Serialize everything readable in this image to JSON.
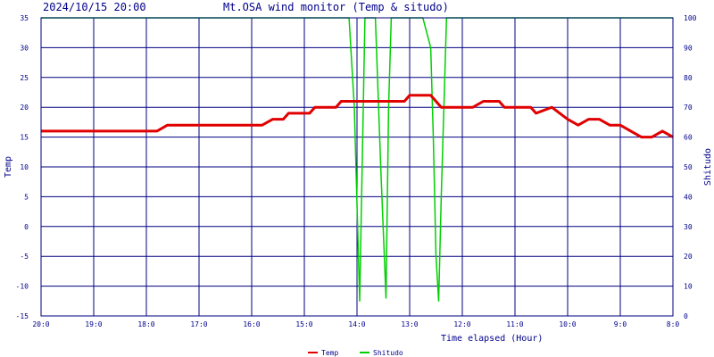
{
  "header": {
    "datetime": "2024/10/15 20:00",
    "title": "Mt.OSA wind monitor (Temp & situdo)"
  },
  "chart_data": {
    "type": "line",
    "xlabel": "Time elapsed (Hour)",
    "ylabel_left": "Temp",
    "ylabel_right": "Shitudo",
    "x_tick_labels": [
      "20:0",
      "19:0",
      "18:0",
      "17:0",
      "16:0",
      "15:0",
      "14:0",
      "13:0",
      "12:0",
      "11:0",
      "10:0",
      "9:0",
      "8:0"
    ],
    "xlim": [
      20,
      8
    ],
    "ylim_left": [
      -15,
      35
    ],
    "ylim_right": [
      0,
      100
    ],
    "y_ticks_left": [
      35,
      30,
      25,
      20,
      15,
      10,
      5,
      0,
      -5,
      -10,
      -15
    ],
    "y_ticks_right": [
      100,
      90,
      80,
      70,
      60,
      50,
      40,
      30,
      20,
      10,
      0
    ],
    "grid": true,
    "legend_position": "bottom-center",
    "series": [
      {
        "name": "Temp",
        "axis": "left",
        "color": "#e00000",
        "x": [
          20.0,
          17.8,
          17.6,
          15.8,
          15.6,
          15.4,
          15.3,
          14.9,
          14.8,
          14.4,
          14.3,
          13.1,
          13.0,
          12.6,
          12.4,
          11.8,
          11.6,
          11.3,
          11.2,
          10.7,
          10.6,
          10.3,
          10.0,
          9.8,
          9.6,
          9.4,
          9.2,
          9.0,
          8.8,
          8.6,
          8.4,
          8.2,
          8.0
        ],
        "values": [
          16,
          16,
          17,
          17,
          18,
          18,
          19,
          19,
          20,
          20,
          21,
          21,
          22,
          22,
          20,
          20,
          21,
          21,
          20,
          20,
          19,
          20,
          18,
          17,
          18,
          18,
          17,
          17,
          16,
          15,
          15,
          16,
          15
        ]
      },
      {
        "name": "Shitudo",
        "axis": "right",
        "color": "#00d000",
        "x": [
          20.0,
          14.15,
          14.05,
          13.95,
          13.85,
          13.8,
          13.75,
          13.65,
          13.55,
          13.45,
          13.4,
          13.35,
          13.25,
          13.15,
          13.05,
          12.75,
          12.6,
          12.55,
          12.5,
          12.45,
          12.4,
          12.3,
          12.2,
          8.0
        ],
        "values": [
          100,
          100,
          70,
          5,
          100,
          100,
          100,
          100,
          50,
          6,
          70,
          100,
          100,
          100,
          100,
          100,
          90,
          60,
          20,
          5,
          40,
          100,
          100,
          100
        ]
      }
    ]
  }
}
